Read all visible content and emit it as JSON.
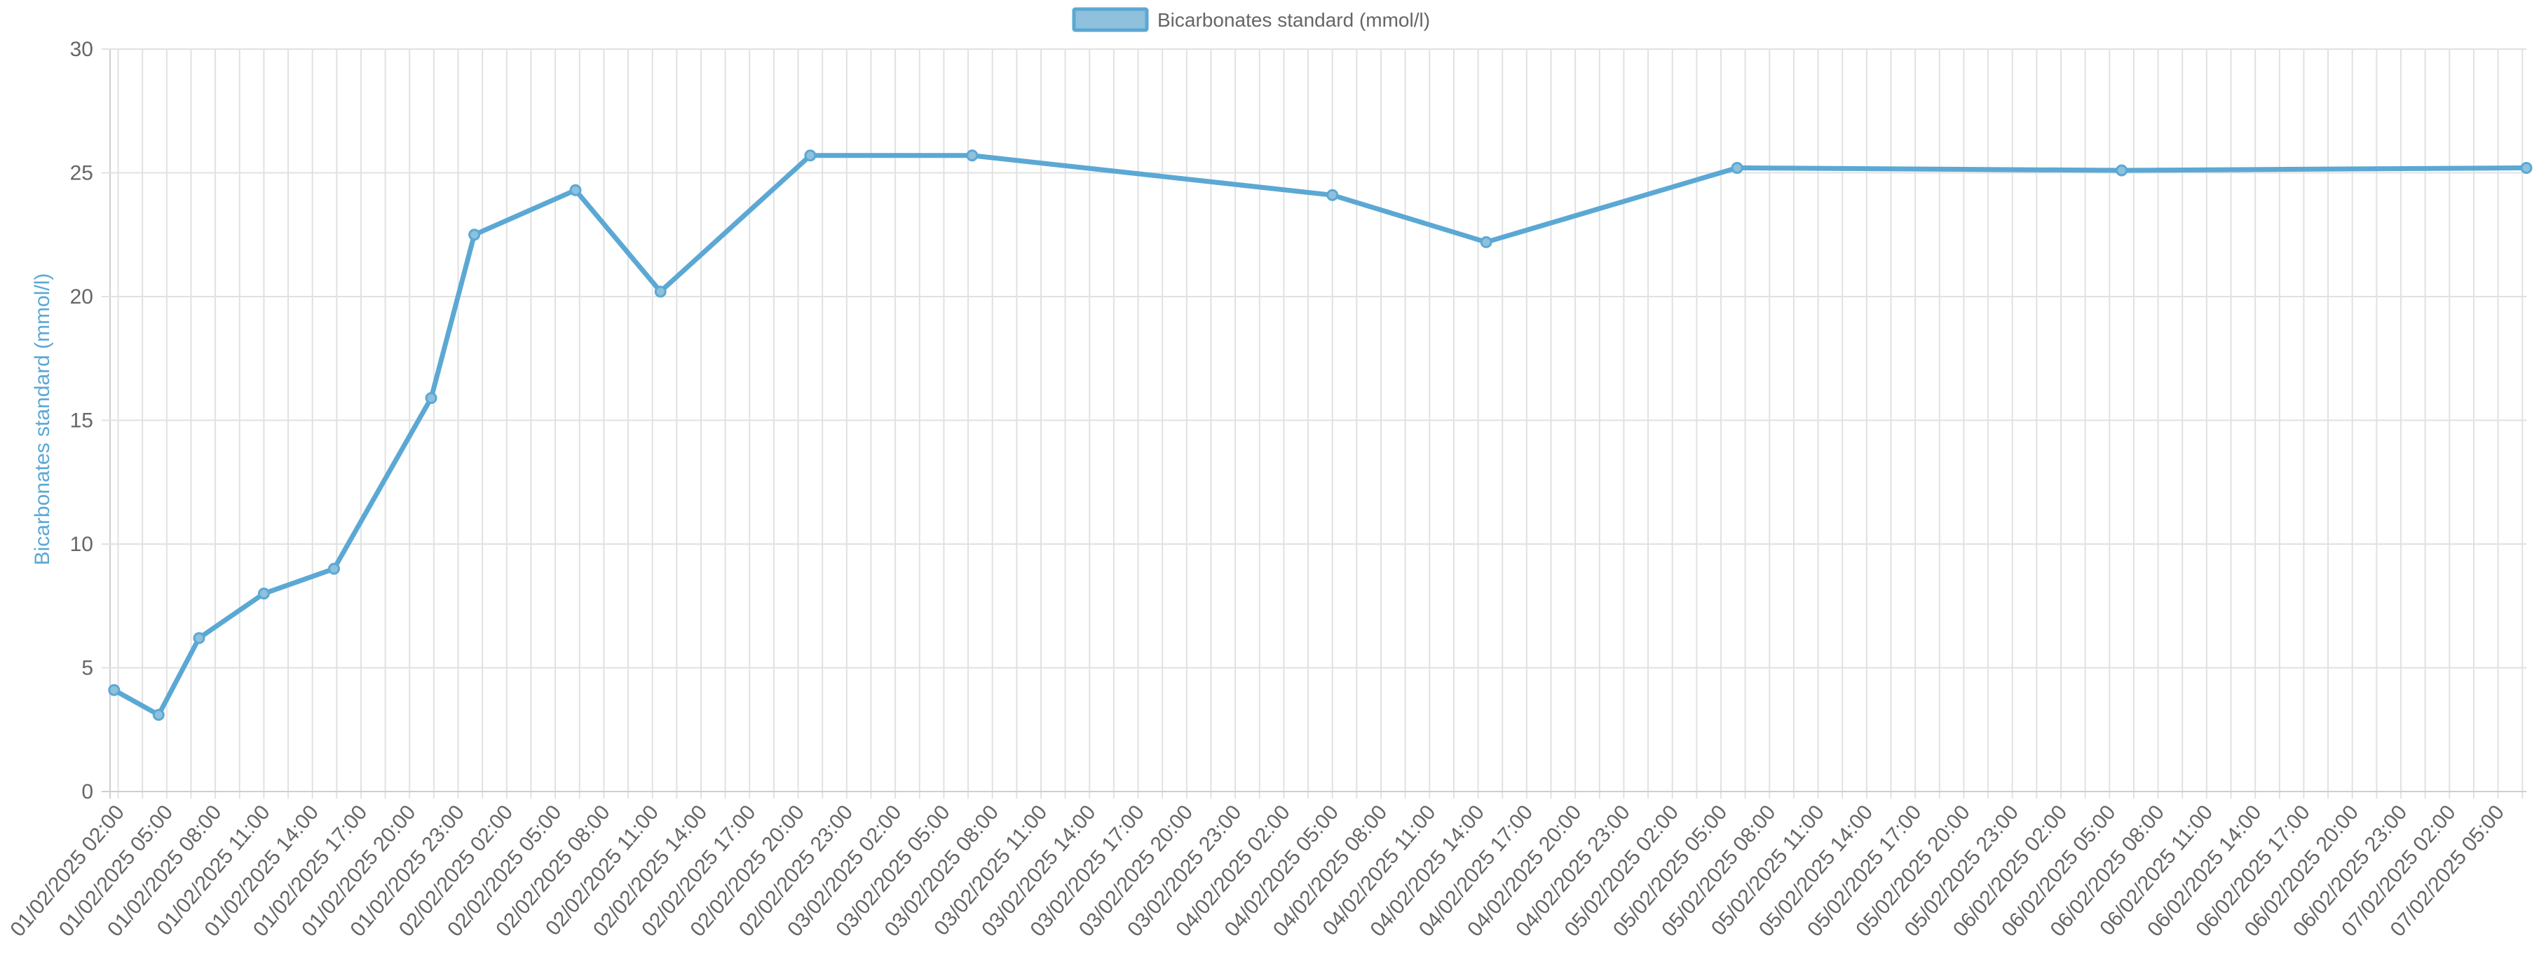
{
  "chart_data": {
    "type": "line",
    "legend": {
      "label": "Bicarbonates standard (mmol/l)",
      "position": "top-center"
    },
    "ylabel": "Bicarbonates standard (mmol/l)",
    "xlabel": "",
    "ylim": [
      0,
      30
    ],
    "yticks": [
      0,
      5,
      10,
      15,
      20,
      25,
      30
    ],
    "grid": true,
    "xlim": [
      "2025-02-01 01:30",
      "2025-02-07 06:45"
    ],
    "xticks": [
      "01/02/2025 02:00",
      "01/02/2025 05:00",
      "01/02/2025 08:00",
      "01/02/2025 11:00",
      "01/02/2025 14:00",
      "01/02/2025 17:00",
      "01/02/2025 20:00",
      "01/02/2025 23:00",
      "02/02/2025 02:00",
      "02/02/2025 05:00",
      "02/02/2025 08:00",
      "02/02/2025 11:00",
      "02/02/2025 14:00",
      "02/02/2025 17:00",
      "02/02/2025 20:00",
      "02/02/2025 23:00",
      "03/02/2025 02:00",
      "03/02/2025 05:00",
      "03/02/2025 08:00",
      "03/02/2025 11:00",
      "03/02/2025 14:00",
      "03/02/2025 17:00",
      "03/02/2025 20:00",
      "03/02/2025 23:00",
      "04/02/2025 02:00",
      "04/02/2025 05:00",
      "04/02/2025 08:00",
      "04/02/2025 11:00",
      "04/02/2025 14:00",
      "04/02/2025 17:00",
      "04/02/2025 20:00",
      "04/02/2025 23:00",
      "05/02/2025 02:00",
      "05/02/2025 05:00",
      "05/02/2025 08:00",
      "05/02/2025 11:00",
      "05/02/2025 14:00",
      "05/02/2025 17:00",
      "05/02/2025 20:00",
      "05/02/2025 23:00",
      "06/02/2025 02:00",
      "06/02/2025 05:00",
      "06/02/2025 08:00",
      "06/02/2025 11:00",
      "06/02/2025 14:00",
      "06/02/2025 17:00",
      "06/02/2025 20:00",
      "06/02/2025 23:00",
      "07/02/2025 02:00",
      "07/02/2025 05:00"
    ],
    "series": [
      {
        "name": "Bicarbonates standard (mmol/l)",
        "color": "#5ba8d4",
        "fill": "#8fc0dc",
        "points": [
          {
            "x": "2025-02-01 01:45",
            "y": 4.1
          },
          {
            "x": "2025-02-01 04:30",
            "y": 3.1
          },
          {
            "x": "2025-02-01 07:00",
            "y": 6.2
          },
          {
            "x": "2025-02-01 11:00",
            "y": 8.0
          },
          {
            "x": "2025-02-01 15:20",
            "y": 9.0
          },
          {
            "x": "2025-02-01 21:20",
            "y": 15.9
          },
          {
            "x": "2025-02-02 00:00",
            "y": 22.5
          },
          {
            "x": "2025-02-02 06:15",
            "y": 24.3
          },
          {
            "x": "2025-02-02 11:30",
            "y": 20.2
          },
          {
            "x": "2025-02-02 20:45",
            "y": 25.7
          },
          {
            "x": "2025-02-03 06:45",
            "y": 25.7
          },
          {
            "x": "2025-02-04 05:00",
            "y": 24.1
          },
          {
            "x": "2025-02-04 14:30",
            "y": 22.2
          },
          {
            "x": "2025-02-05 06:00",
            "y": 25.2
          },
          {
            "x": "2025-02-06 05:45",
            "y": 25.1
          },
          {
            "x": "2025-02-07 06:45",
            "y": 25.2
          }
        ]
      }
    ]
  }
}
